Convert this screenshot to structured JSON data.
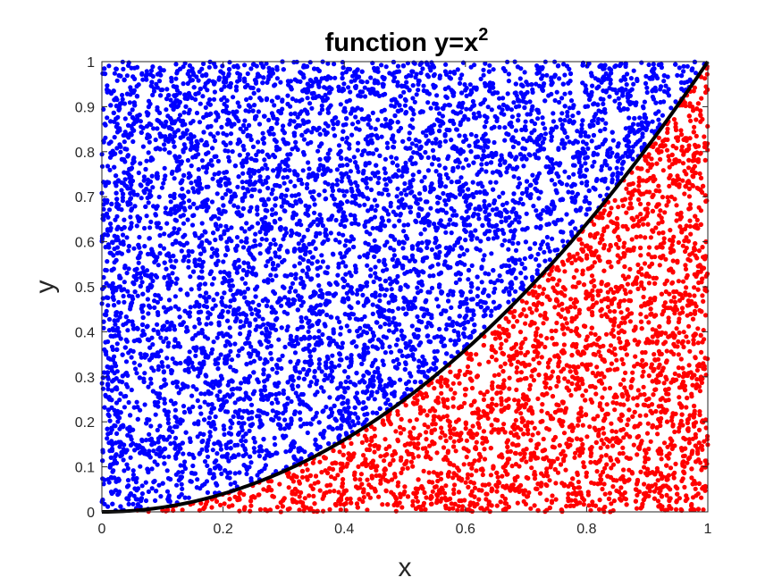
{
  "chart_data": {
    "type": "scatter",
    "title": "function y=x",
    "title_superscript": "2",
    "xlabel": "x",
    "ylabel": "y",
    "xlim": [
      0,
      1
    ],
    "ylim": [
      0,
      1
    ],
    "grid": false,
    "x_ticks": [
      "0",
      "0.2",
      "0.4",
      "0.6",
      "0.8",
      "1"
    ],
    "y_ticks": [
      "0",
      "0.1",
      "0.2",
      "0.3",
      "0.4",
      "0.5",
      "0.6",
      "0.7",
      "0.8",
      "0.9",
      "1"
    ],
    "x_tick_values": [
      0,
      0.2,
      0.4,
      0.6,
      0.8,
      1
    ],
    "y_tick_values": [
      0,
      0.1,
      0.2,
      0.3,
      0.4,
      0.5,
      0.6,
      0.7,
      0.8,
      0.9,
      1
    ],
    "curve": {
      "expression": "y = x^2",
      "x_range": [
        0,
        1
      ],
      "color": "#000000"
    },
    "series": [
      {
        "rule": "y > x^2",
        "color": "#0000ff"
      },
      {
        "rule": "y < x^2",
        "color": "#ff0000"
      }
    ],
    "point_count": 10000
  }
}
